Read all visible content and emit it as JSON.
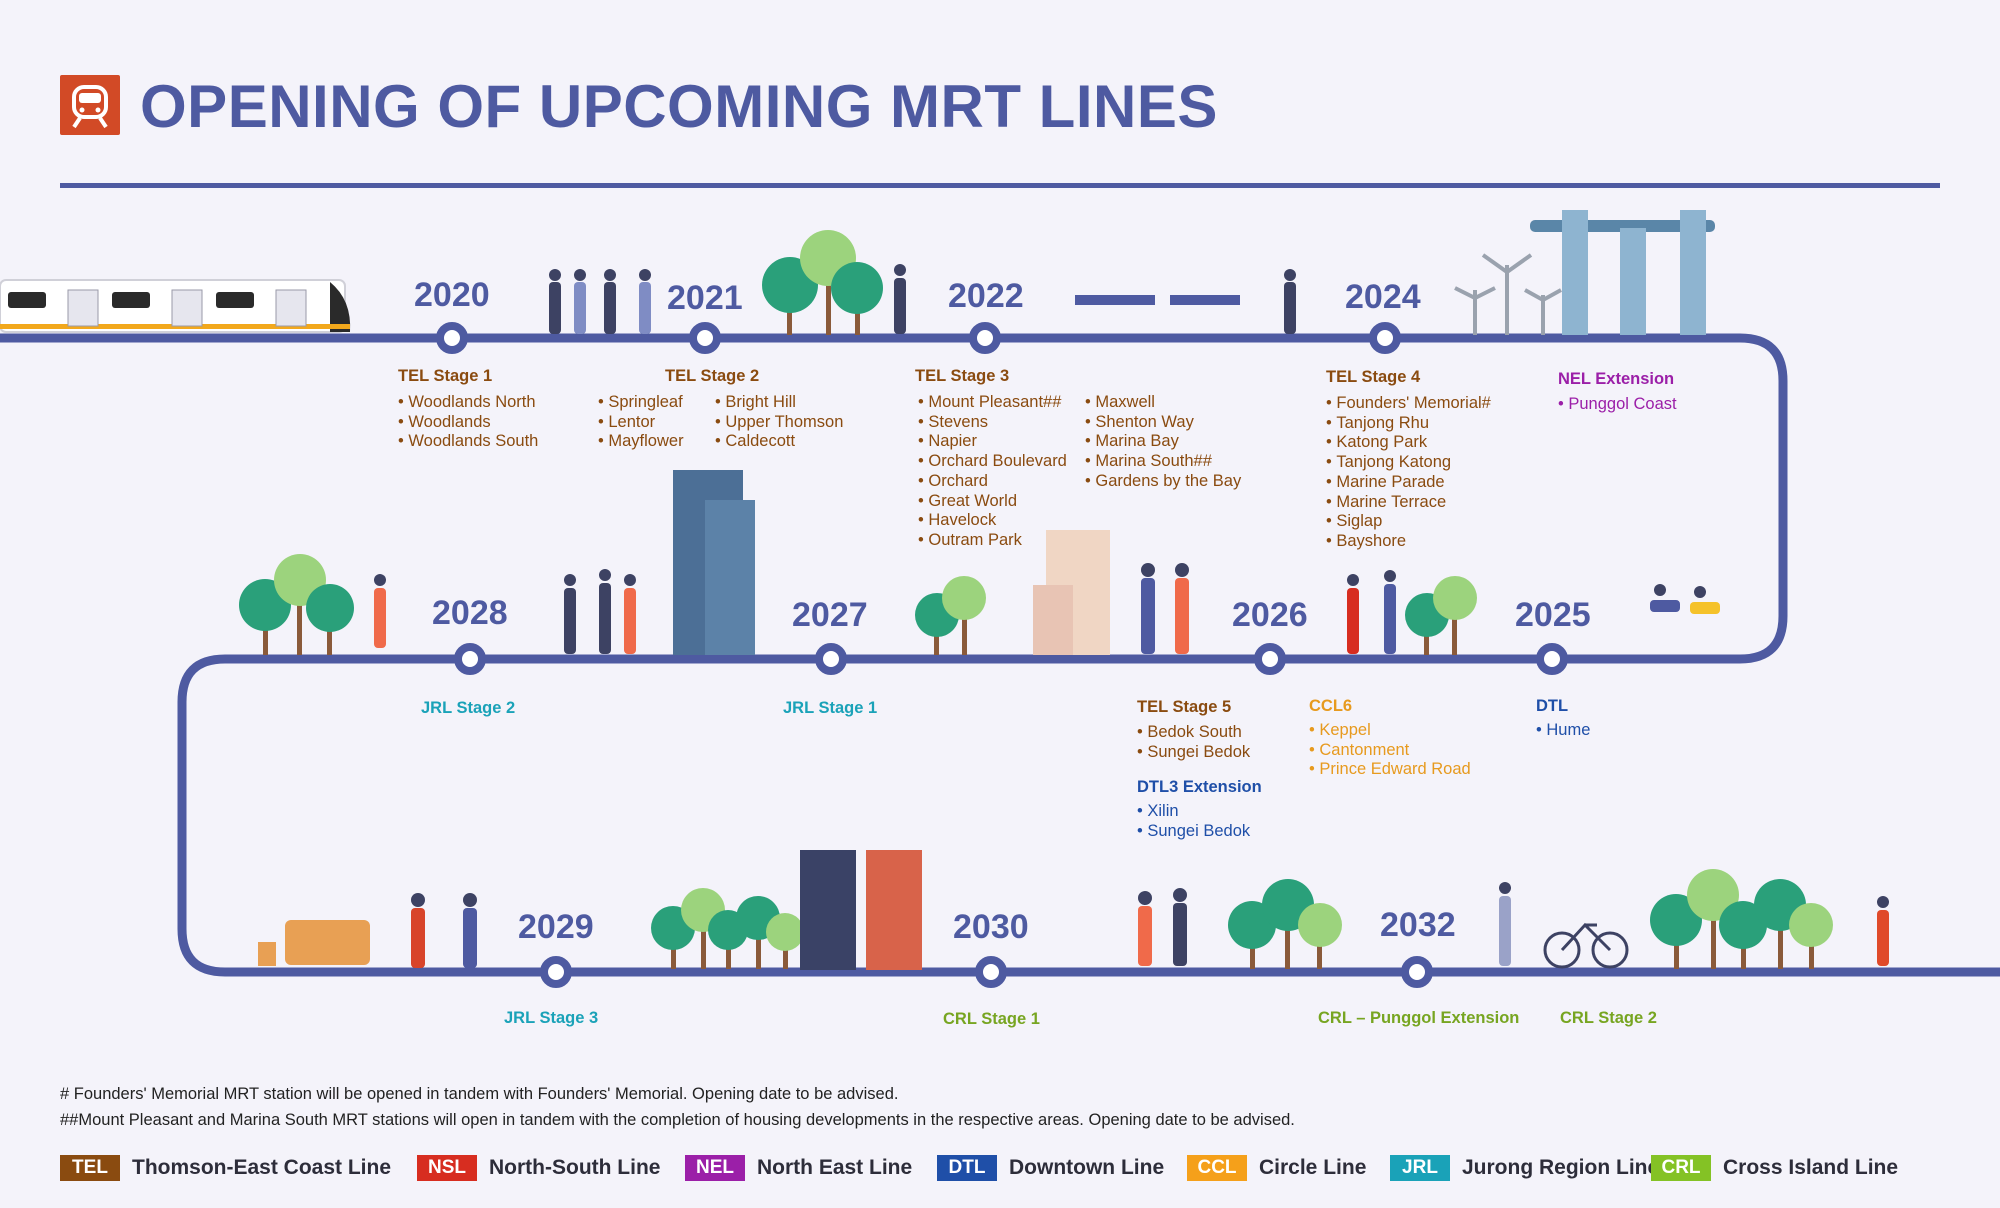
{
  "title": "OPENING OF UPCOMING MRT LINES",
  "colors": {
    "track": "#4e5aa1",
    "TEL": "#8a4b10",
    "NSL": "#d72d20",
    "NEL": "#9b1fa8",
    "DTL": "#1f4fa8",
    "CCL": "#f5a01a",
    "JRL": "#1aa2b8",
    "CRL": "#84c225"
  },
  "years": {
    "y2020": "2020",
    "y2021": "2021",
    "y2022": "2022",
    "y2024": "2024",
    "y2025": "2025",
    "y2026": "2026",
    "y2027": "2027",
    "y2028": "2028",
    "y2029": "2029",
    "y2030": "2030",
    "y2032": "2032"
  },
  "stages": {
    "tel1": {
      "title": "TEL Stage 1",
      "stations": [
        "Woodlands North",
        "Woodlands",
        "Woodlands South"
      ]
    },
    "tel2": {
      "title": "TEL Stage 2",
      "stations_a": [
        "Springleaf",
        "Lentor",
        "Mayflower"
      ],
      "stations_b": [
        "Bright Hill",
        "Upper Thomson",
        "Caldecott"
      ]
    },
    "tel3": {
      "title": "TEL Stage 3",
      "stations_a": [
        "Mount Pleasant##",
        "Stevens",
        "Napier",
        "Orchard Boulevard",
        "Orchard",
        "Great World",
        "Havelock",
        "Outram Park"
      ],
      "stations_b": [
        "Maxwell",
        "Shenton Way",
        "Marina Bay",
        "Marina South##",
        "Gardens by the Bay"
      ]
    },
    "tel4": {
      "title": "TEL Stage 4",
      "stations": [
        "Founders' Memorial#",
        "Tanjong Rhu",
        "Katong Park",
        "Tanjong Katong",
        "Marine Parade",
        "Marine Terrace",
        "Siglap",
        "Bayshore"
      ]
    },
    "nelx": {
      "title": "NEL Extension",
      "stations": [
        "Punggol Coast"
      ]
    },
    "dtl": {
      "title": "DTL",
      "stations": [
        "Hume"
      ]
    },
    "ccl6": {
      "title": "CCL6",
      "stations": [
        "Keppel",
        "Cantonment",
        "Prince Edward Road"
      ]
    },
    "tel5": {
      "title": "TEL Stage 5",
      "stations": [
        "Bedok South",
        "Sungei Bedok"
      ]
    },
    "dtl3x": {
      "title": "DTL3 Extension",
      "stations": [
        "Xilin",
        "Sungei Bedok"
      ]
    },
    "jrl1": {
      "title": "JRL Stage 1"
    },
    "jrl2": {
      "title": "JRL Stage 2"
    },
    "jrl3": {
      "title": "JRL Stage 3"
    },
    "crl1": {
      "title": "CRL Stage 1"
    },
    "crlpe": {
      "title": "CRL – Punggol Extension"
    },
    "crl2": {
      "title": "CRL Stage 2"
    }
  },
  "notes": {
    "n1": "# Founders' Memorial MRT station will be opened in tandem with Founders' Memorial. Opening date to be advised.",
    "n2": "##Mount Pleasant and Marina South MRT stations will open in tandem with the completion of housing developments in the respective areas. Opening date to be advised."
  },
  "legend": [
    {
      "code": "TEL",
      "name": "Thomson-East Coast Line",
      "color": "#8a4b10"
    },
    {
      "code": "NSL",
      "name": "North-South Line",
      "color": "#d72d20"
    },
    {
      "code": "NEL",
      "name": "North East Line",
      "color": "#9b1fa8"
    },
    {
      "code": "DTL",
      "name": "Downtown Line",
      "color": "#1f4fa8"
    },
    {
      "code": "CCL",
      "name": "Circle Line",
      "color": "#f5a01a"
    },
    {
      "code": "JRL",
      "name": "Jurong Region Line",
      "color": "#1aa2b8"
    },
    {
      "code": "CRL",
      "name": "Cross Island Line",
      "color": "#84c225"
    }
  ]
}
